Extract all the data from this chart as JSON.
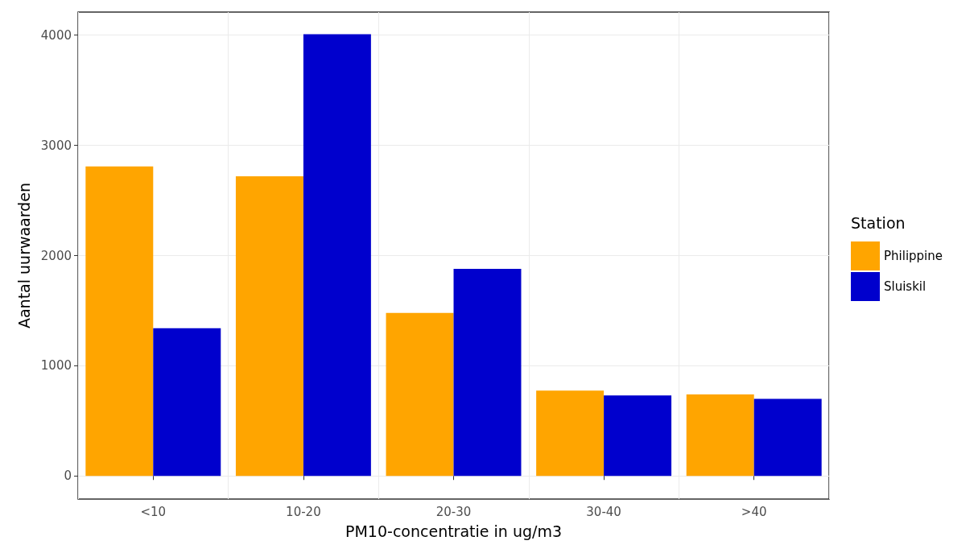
{
  "chart_data": {
    "type": "bar",
    "xlabel": "PM10-concentratie in ug/m3",
    "ylabel": "Aantal uurwaarden",
    "legend_title": "Station",
    "categories": [
      "<10",
      "10-20",
      "20-30",
      "30-40",
      ">40"
    ],
    "series": [
      {
        "name": "Philippine",
        "color": "#ffa500",
        "values": [
          2810,
          2720,
          1480,
          775,
          740
        ]
      },
      {
        "name": "Sluiskil",
        "color": "#0000cd",
        "values": [
          1340,
          4010,
          1880,
          730,
          700
        ]
      }
    ],
    "ylim": [
      -210,
      4210
    ],
    "yticks": [
      0,
      1000,
      2000,
      3000,
      4000
    ],
    "grid": true,
    "legend": "right"
  }
}
